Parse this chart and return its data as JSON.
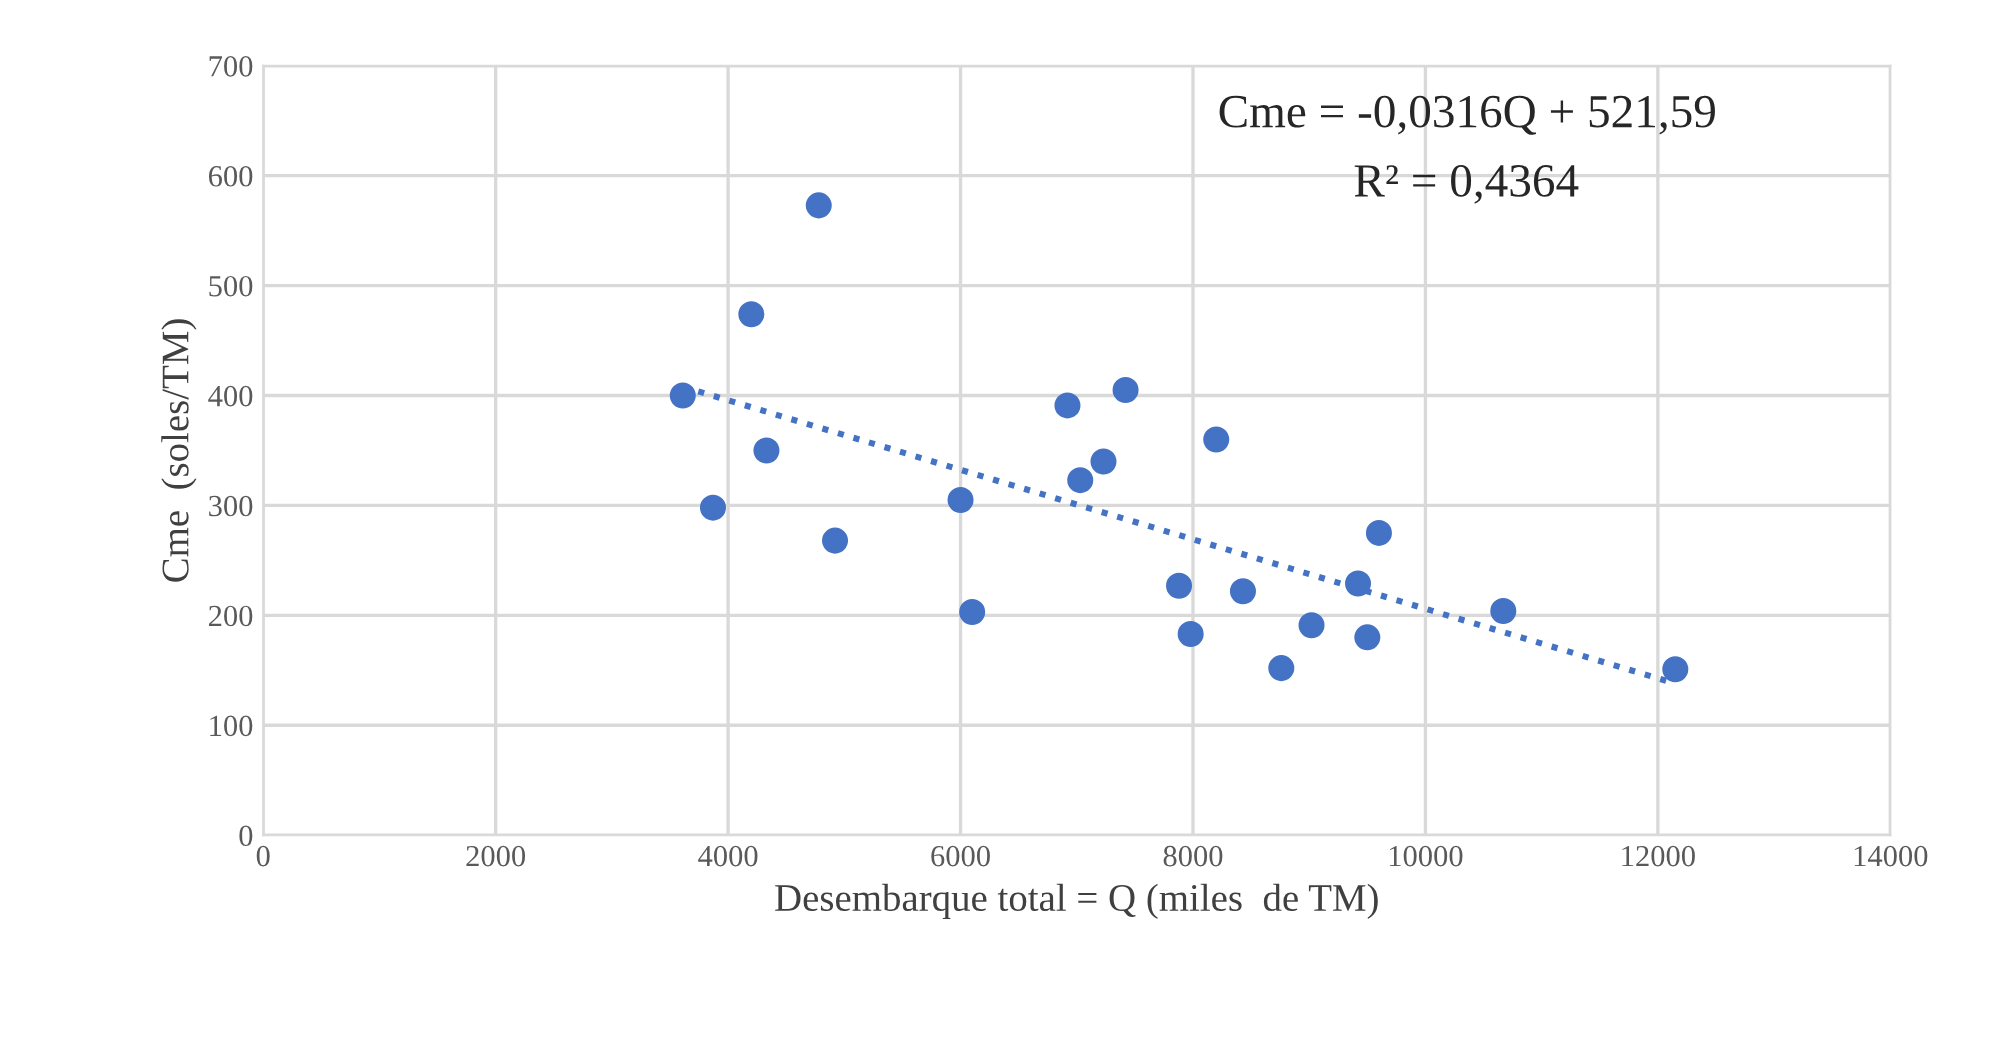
{
  "chart_data": {
    "type": "scatter",
    "xlabel": "Desembarque total = Q (miles  de TM)",
    "ylabel": "Cme  (soles/TM)",
    "annotations": [
      "Cme = -0,0316Q + 521,59",
      "R² = 0,4364"
    ],
    "series": [
      {
        "color": "#4472c4",
        "marker": "circle",
        "x": [
          3610,
          3870,
          4200,
          4330,
          4780,
          4920,
          6000,
          6100,
          6920,
          7030,
          7230,
          7420,
          8200,
          7880,
          7980,
          8430,
          8760,
          9020,
          9420,
          9500,
          9600,
          10670,
          12150
        ],
        "values": [
          400,
          298,
          474,
          350,
          573,
          268,
          305,
          203,
          391,
          323,
          340,
          405,
          360,
          227,
          183,
          222,
          152,
          191,
          229,
          180,
          275,
          204,
          151
        ]
      },
      {
        "type": "line",
        "color": "#4472c4",
        "line_style": "dotted",
        "marker": "none",
        "x": [
          3610,
          12150
        ],
        "values": [
          408,
          138
        ]
      }
    ],
    "xlim": [
      0,
      14000
    ],
    "xticks": [
      0,
      2000,
      4000,
      6000,
      8000,
      10000,
      12000,
      14000
    ],
    "ylim": [
      0,
      700
    ],
    "yticks": [
      0,
      100,
      200,
      300,
      400,
      500,
      600,
      700
    ],
    "grid": true,
    "legend": false
  }
}
